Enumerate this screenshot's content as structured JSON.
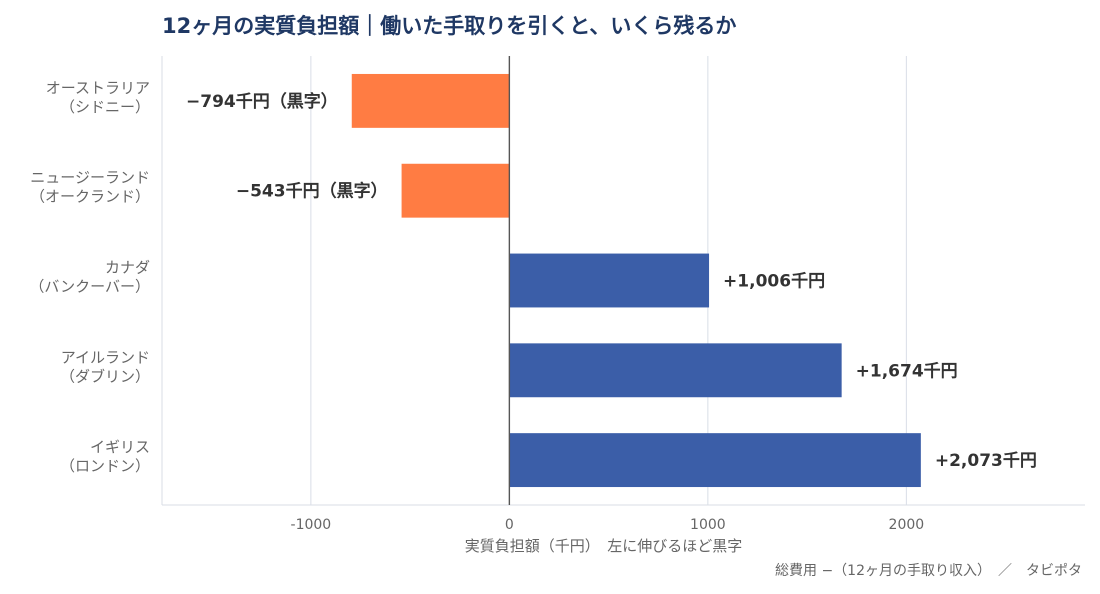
{
  "title": "12ヶ月の実質負担額｜働いた手取りを引くと、いくら残るか",
  "footer": "総費用 −（12ヶ月の手取り収入）　／　タビポタ",
  "colors": {
    "negative": "#ff7c43",
    "positive": "#3b5ea8",
    "title": "#1f3864",
    "text": "#333333",
    "axis": "#555555",
    "grid": "#d9dee6"
  },
  "chart_data": {
    "type": "bar",
    "orientation": "horizontal",
    "categories": [
      "オーストラリア\n（シドニー）",
      "ニュージーランド\n（オークランド）",
      "カナダ\n（バンクーバー）",
      "アイルランド\n（ダブリン）",
      "イギリス\n（ロンドン）"
    ],
    "values": [
      -794,
      -543,
      1006,
      1674,
      2073
    ],
    "data_labels": [
      "−794千円（黒字）",
      "−543千円（黒字）",
      "+1,006千円",
      "+1,674千円",
      "+2,073千円"
    ],
    "xlabel": "実質負担額（千円）　左に伸びるほど黒字",
    "ylabel": "",
    "xlim": [
      -1750,
      2900
    ],
    "xticks": [
      -1000,
      0,
      1000,
      2000
    ],
    "grid": true
  }
}
